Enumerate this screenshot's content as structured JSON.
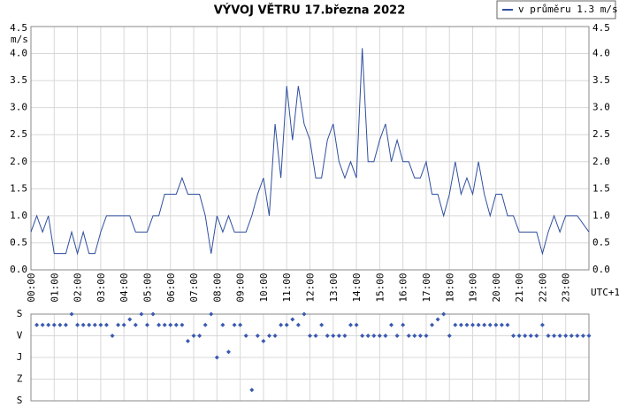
{
  "chart_data": [
    {
      "type": "line",
      "title": "VÝVOJ VĚTRU  17.března 2022",
      "y_label": "m/s",
      "x_label": "UTC+1",
      "legend": "top-right",
      "grid": true,
      "xlim": [
        0,
        24
      ],
      "xticks": [
        {
          "value": 0,
          "label": "00:00"
        },
        {
          "value": 1,
          "label": "01:00"
        },
        {
          "value": 2,
          "label": "02:00"
        },
        {
          "value": 3,
          "label": "03:00"
        },
        {
          "value": 4,
          "label": "04:00"
        },
        {
          "value": 5,
          "label": "05:00"
        },
        {
          "value": 6,
          "label": "06:00"
        },
        {
          "value": 7,
          "label": "07:00"
        },
        {
          "value": 8,
          "label": "08:00"
        },
        {
          "value": 9,
          "label": "09:00"
        },
        {
          "value": 10,
          "label": "10:00"
        },
        {
          "value": 11,
          "label": "11:00"
        },
        {
          "value": 12,
          "label": "12:00"
        },
        {
          "value": 13,
          "label": "13:00"
        },
        {
          "value": 14,
          "label": "14:00"
        },
        {
          "value": 15,
          "label": "15:00"
        },
        {
          "value": 16,
          "label": "16:00"
        },
        {
          "value": 17,
          "label": "17:00"
        },
        {
          "value": 18,
          "label": "18:00"
        },
        {
          "value": 19,
          "label": "19:00"
        },
        {
          "value": 20,
          "label": "20:00"
        },
        {
          "value": 21,
          "label": "21:00"
        },
        {
          "value": 22,
          "label": "22:00"
        },
        {
          "value": 23,
          "label": "23:00"
        }
      ],
      "ylim": [
        0,
        4.5
      ],
      "yticks": [
        {
          "value": 0,
          "label": "0.0"
        },
        0.5,
        {
          "value": 1,
          "label": "1.0"
        },
        1.5,
        {
          "value": 2,
          "label": "2.0"
        },
        2.5,
        {
          "value": 3,
          "label": "3.0"
        },
        3.5,
        {
          "value": 4,
          "label": "4.0"
        },
        4.5
      ],
      "x": [
        0,
        0.25,
        0.5,
        0.75,
        1,
        1.5,
        1.75,
        2,
        2.25,
        2.5,
        2.75,
        3,
        3.25,
        4.25,
        4.5,
        5,
        5.25,
        5.5,
        5.75,
        6.25,
        6.5,
        6.75,
        7.25,
        7.5,
        7.75,
        8,
        8.25,
        8.5,
        8.75,
        9.25,
        9.5,
        9.75,
        10,
        10.25,
        10.5,
        10.75,
        11,
        11.25,
        11.5,
        11.75,
        12,
        12.25,
        12.5,
        12.75,
        13,
        13.25,
        13.5,
        13.75,
        14,
        14.25,
        14.5,
        14.75,
        15,
        15.25,
        15.5,
        15.75,
        16,
        16.25,
        16.5,
        16.75,
        17,
        17.25,
        17.5,
        17.75,
        18,
        18.25,
        18.5,
        18.75,
        19,
        19.25,
        19.5,
        19.75,
        20,
        20.25,
        20.5,
        20.75,
        21,
        21.75,
        22,
        22.25,
        22.5,
        22.75,
        23,
        23.5,
        24
      ],
      "series": [
        {
          "name": "v průměru 1.3 m/s",
          "color": "#2f4f9f",
          "values": [
            0.7,
            1.0,
            0.7,
            1.0,
            0.3,
            0.3,
            0.7,
            0.3,
            0.7,
            0.3,
            0.3,
            0.7,
            1.0,
            1.0,
            0.7,
            0.7,
            1.0,
            1.0,
            1.4,
            1.4,
            1.7,
            1.4,
            1.4,
            1.0,
            0.3,
            1.0,
            0.7,
            1.0,
            0.7,
            0.7,
            1.0,
            1.4,
            1.7,
            1.0,
            2.7,
            1.7,
            3.4,
            2.4,
            3.4,
            2.7,
            2.4,
            1.7,
            1.7,
            2.4,
            2.7,
            2.0,
            1.7,
            2.0,
            1.7,
            4.1,
            2.0,
            2.0,
            2.4,
            2.7,
            2.0,
            2.4,
            2.0,
            2.0,
            1.7,
            1.7,
            2.0,
            1.4,
            1.4,
            1.0,
            1.4,
            2.0,
            1.4,
            1.7,
            1.4,
            2.0,
            1.4,
            1.0,
            1.4,
            1.4,
            1.0,
            1.0,
            0.7,
            0.7,
            0.3,
            0.7,
            1.0,
            0.7,
            1.0,
            1.0,
            0.7
          ]
        }
      ]
    },
    {
      "type": "scatter",
      "xlim": [
        0,
        24
      ],
      "ylim": [
        0,
        360
      ],
      "inverted": true,
      "yticks": [
        {
          "value": 0,
          "label": "S"
        },
        {
          "value": 90,
          "label": "V"
        },
        {
          "value": 180,
          "label": "J"
        },
        {
          "value": 270,
          "label": "Z"
        },
        {
          "value": 360,
          "label": "S"
        }
      ],
      "x": [
        0.25,
        0.5,
        0.75,
        1,
        1.25,
        1.5,
        1.75,
        2,
        2.25,
        2.5,
        2.75,
        3,
        3.25,
        3.5,
        3.75,
        4,
        4.25,
        4.5,
        4.75,
        5,
        5.25,
        5.5,
        5.75,
        6,
        6.25,
        6.5,
        6.75,
        7,
        7.25,
        7.5,
        7.75,
        8,
        8.25,
        8.5,
        8.75,
        9,
        9.25,
        9.5,
        9.75,
        10,
        10.25,
        10.5,
        10.75,
        11,
        11.25,
        11.5,
        11.75,
        12,
        12.25,
        12.5,
        12.75,
        13,
        13.25,
        13.5,
        13.75,
        14,
        14.25,
        14.5,
        14.75,
        15,
        15.25,
        15.5,
        15.75,
        16,
        16.25,
        16.5,
        16.75,
        17,
        17.25,
        17.5,
        17.75,
        18,
        18.25,
        18.5,
        18.75,
        19,
        19.25,
        19.5,
        19.75,
        20,
        20.25,
        20.5,
        20.75,
        21,
        21.25,
        21.5,
        21.75,
        22,
        22.25,
        22.5,
        22.75,
        23,
        23.25,
        23.5,
        23.75,
        24
      ],
      "color": "#3a5ab0",
      "values": [
        45,
        45,
        45,
        45,
        45,
        45,
        0,
        45,
        45,
        45,
        45,
        45,
        45,
        90,
        45,
        45,
        22,
        45,
        0,
        45,
        0,
        45,
        45,
        45,
        45,
        45,
        112,
        90,
        90,
        45,
        0,
        180,
        45,
        157,
        45,
        45,
        90,
        315,
        90,
        112,
        90,
        90,
        45,
        45,
        22,
        45,
        0,
        90,
        90,
        45,
        90,
        90,
        90,
        90,
        45,
        45,
        90,
        90,
        90,
        90,
        90,
        45,
        90,
        45,
        90,
        90,
        90,
        90,
        45,
        22,
        0,
        90,
        45,
        45,
        45,
        45,
        45,
        45,
        45,
        45,
        45,
        45,
        90,
        90,
        90,
        90,
        90,
        45,
        90,
        90,
        90,
        90,
        90,
        90,
        90,
        90
      ]
    }
  ]
}
